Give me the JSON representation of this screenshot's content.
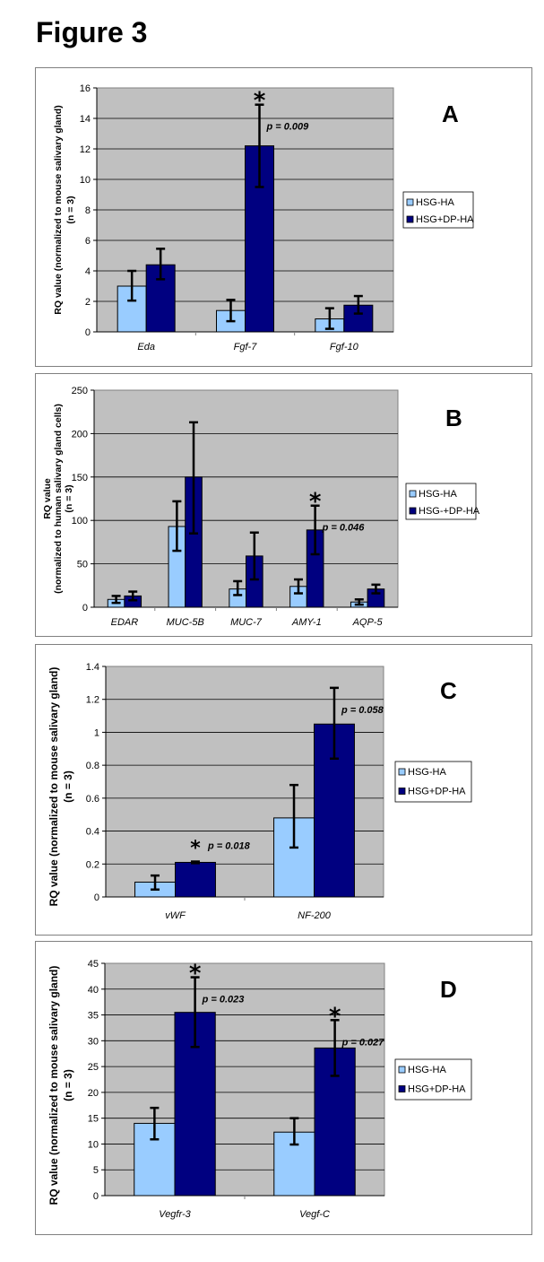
{
  "figure_title": "Figure 3",
  "colors": {
    "hsg_ha": "#99CCFF",
    "hsg_dp_ha": "#000080",
    "plot_bg": "#C0C0C0",
    "grid": "#000000"
  },
  "chart_data": [
    {
      "panel": "A",
      "type": "bar",
      "ylabel": "RQ value (normalized to mouse salivary gland)",
      "ylabel2": "(n = 3)",
      "ylim": [
        0,
        16
      ],
      "yticks": [
        0,
        2,
        4,
        6,
        8,
        10,
        12,
        14,
        16
      ],
      "categories": [
        "Eda",
        "Fgf-7",
        "Fgf-10"
      ],
      "legend": [
        "HSG-HA",
        "HSG+DP-HA"
      ],
      "legend_position": "right",
      "series": [
        {
          "name": "HSG-HA",
          "values": [
            3.0,
            1.4,
            0.85
          ],
          "err_low": [
            2.05,
            0.7,
            0.2
          ],
          "err_high": [
            4.0,
            2.1,
            1.55
          ]
        },
        {
          "name": "HSG+DP-HA",
          "values": [
            4.4,
            12.2,
            1.75
          ],
          "err_low": [
            3.45,
            9.5,
            1.2
          ],
          "err_high": [
            5.45,
            14.9,
            2.35
          ]
        }
      ],
      "annotations": [
        {
          "category": "Fgf-7",
          "series": 1,
          "text": "p = 0.009",
          "star": true
        }
      ]
    },
    {
      "panel": "B",
      "type": "bar",
      "ylabel": "RQ value",
      "ylabel2": "(normalized to human salivary gland cells)",
      "ylabel3": "(n = 3)",
      "ylim": [
        0,
        250
      ],
      "yticks": [
        0,
        50,
        100,
        150,
        200,
        250
      ],
      "categories": [
        "EDAR",
        "MUC-5B",
        "MUC-7",
        "AMY-1",
        "AQP-5"
      ],
      "legend": [
        "HSG-HA",
        "HSG-+DP-HA"
      ],
      "legend_position": "right",
      "series": [
        {
          "name": "HSG-HA",
          "values": [
            9,
            93,
            21,
            24,
            6
          ],
          "err_low": [
            5,
            65,
            14,
            16,
            3
          ],
          "err_high": [
            13,
            122,
            30,
            32,
            9
          ]
        },
        {
          "name": "HSG-+DP-HA",
          "values": [
            13,
            150,
            59,
            89,
            21
          ],
          "err_low": [
            8,
            85,
            32,
            61,
            16
          ],
          "err_high": [
            18,
            213,
            86,
            117,
            26
          ]
        }
      ],
      "annotations": [
        {
          "category": "AMY-1",
          "series": 1,
          "text": "p = 0.046",
          "star": true
        }
      ]
    },
    {
      "panel": "C",
      "type": "bar",
      "ylabel": "RQ value (normalized to mouse salivary gland)",
      "ylabel2": "(n = 3)",
      "ylim": [
        0,
        1.4
      ],
      "yticks": [
        0,
        0.2,
        0.4,
        0.6,
        0.8,
        1,
        1.2,
        1.4
      ],
      "categories": [
        "vWF",
        "NF-200"
      ],
      "legend": [
        "HSG-HA",
        "HSG+DP-HA"
      ],
      "legend_position": "right",
      "series": [
        {
          "name": "HSG-HA",
          "values": [
            0.09,
            0.48
          ],
          "err_low": [
            0.045,
            0.3
          ],
          "err_high": [
            0.13,
            0.68
          ]
        },
        {
          "name": "HSG+DP-HA",
          "values": [
            0.21,
            1.05
          ],
          "err_low": [
            0.205,
            0.84
          ],
          "err_high": [
            0.215,
            1.27
          ]
        }
      ],
      "annotations": [
        {
          "category": "vWF",
          "series": 1,
          "text": "p = 0.018",
          "star": true
        },
        {
          "category": "NF-200",
          "series": 1,
          "text": "p = 0.058",
          "star": false
        }
      ]
    },
    {
      "panel": "D",
      "type": "bar",
      "ylabel": "RQ value (normalized to mouse salivary gland)",
      "ylabel2": "(n = 3)",
      "ylim": [
        0,
        45
      ],
      "yticks": [
        0,
        5,
        10,
        15,
        20,
        25,
        30,
        35,
        40,
        45
      ],
      "categories": [
        "Vegfr-3",
        "Vegf-C"
      ],
      "legend": [
        "HSG-HA",
        "HSG+DP-HA"
      ],
      "legend_position": "right",
      "series": [
        {
          "name": "HSG-HA",
          "values": [
            14.0,
            12.3
          ],
          "err_low": [
            10.9,
            9.9
          ],
          "err_high": [
            17.0,
            15.0
          ]
        },
        {
          "name": "HSG+DP-HA",
          "values": [
            35.5,
            28.6
          ],
          "err_low": [
            28.8,
            23.2
          ],
          "err_high": [
            42.3,
            34.0
          ]
        }
      ],
      "annotations": [
        {
          "category": "Vegfr-3",
          "series": 1,
          "text": "p = 0.023",
          "star": true
        },
        {
          "category": "Vegf-C",
          "series": 1,
          "text": "p = 0.027",
          "star": true
        }
      ]
    }
  ]
}
